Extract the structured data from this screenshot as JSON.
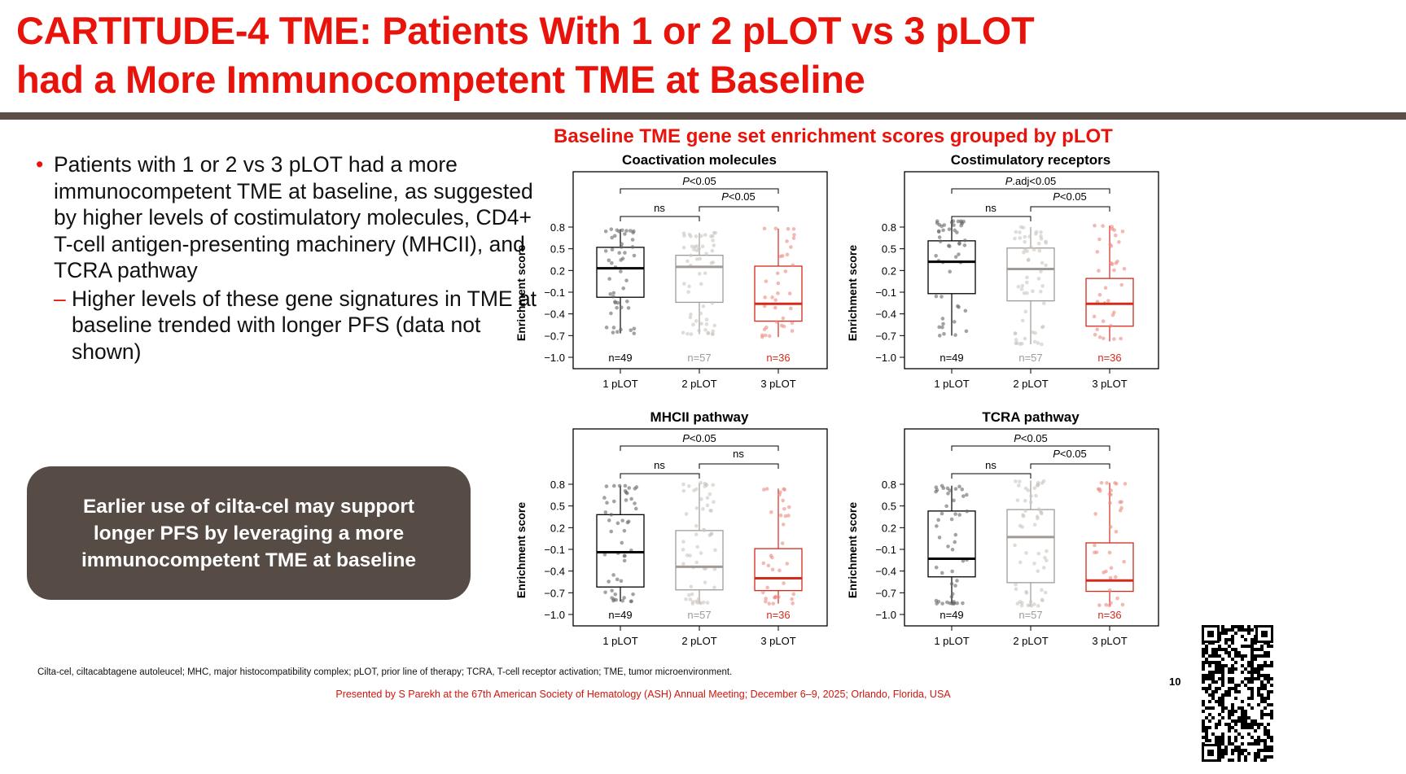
{
  "slide": {
    "title_line1": "CARTITUDE-4 TME: Patients With 1 or 2 pLOT vs 3 pLOT",
    "title_line2": "had a More Immunocompetent TME at Baseline",
    "bullet1": "Patients with 1 or 2 vs 3 pLOT had a more immunocompetent TME at baseline, as suggested by higher levels of costimulatory molecules, CD4+ T-cell antigen-presenting machinery (MHCII), and TCRA pathway",
    "bullet1_marker": "•",
    "bullet2": "Higher levels of these gene signatures in TME at baseline trended with longer PFS (data not shown)",
    "bullet2_marker": "–",
    "callout": "Earlier use of cilta-cel may support longer PFS by leveraging a more immunocompetent TME at baseline",
    "chart_heading": "Baseline TME gene set enrichment scores grouped by pLOT",
    "footnote": "Cilta-cel, ciltacabtagene autoleucel; MHC, major histocompatibility complex; pLOT, prior line of therapy; TCRA, T-cell receptor activation; TME, tumor microenvironment.",
    "presented_by": "Presented by S Parekh at the 67th American Society of Hematology (ASH) Annual Meeting; December 6–9, 2025; Orlando, Florida, USA",
    "page_number": "10",
    "colors": {
      "title": "#e8140c",
      "rule": "#5b4f47",
      "callout": "#574b45"
    }
  },
  "chart_data": [
    {
      "type": "box",
      "title": "Coactivation molecules",
      "ylabel": "Enrichment score",
      "yticks": [
        "0.8",
        "0.5",
        "0.2",
        "−0.1",
        "−0.4",
        "−0.7",
        "−1.0"
      ],
      "ylim": [
        -1.0,
        0.8
      ],
      "categories": [
        "1 pLOT",
        "2 pLOT",
        "3 pLOT"
      ],
      "n_labels": [
        "n=49",
        "n=57",
        "n=36"
      ],
      "colors": [
        "#000000",
        "#a09a96",
        "#d42a1c"
      ],
      "boxes": [
        {
          "whisker_low": -0.67,
          "q1": -0.17,
          "median": 0.23,
          "q3": 0.52,
          "whisker_high": 0.77
        },
        {
          "whisker_low": -0.68,
          "q1": -0.24,
          "median": 0.25,
          "q3": 0.41,
          "whisker_high": 0.72
        },
        {
          "whisker_low": -0.72,
          "q1": -0.5,
          "median": -0.26,
          "q3": 0.26,
          "whisker_high": 0.78
        }
      ],
      "comparisons": {
        "1v3": "<0.05",
        "2v3": "<0.05",
        "1v2": "ns"
      },
      "p_prefix_1v3": "P",
      "p_prefix_2v3": "P"
    },
    {
      "type": "box",
      "title": "Costimulatory receptors",
      "ylabel": "Enrichment score",
      "yticks": [
        "0.8",
        "0.5",
        "0.2",
        "−0.1",
        "−0.4",
        "−0.7",
        "−1.0"
      ],
      "ylim": [
        -1.0,
        0.8
      ],
      "categories": [
        "1 pLOT",
        "2 pLOT",
        "3 pLOT"
      ],
      "n_labels": [
        "n=49",
        "n=57",
        "n=36"
      ],
      "colors": [
        "#000000",
        "#a09a96",
        "#d42a1c"
      ],
      "boxes": [
        {
          "whisker_low": -0.7,
          "q1": -0.12,
          "median": 0.32,
          "q3": 0.61,
          "whisker_high": 0.89
        },
        {
          "whisker_low": -0.82,
          "q1": -0.22,
          "median": 0.22,
          "q3": 0.51,
          "whisker_high": 0.8
        },
        {
          "whisker_low": -0.78,
          "q1": -0.57,
          "median": -0.26,
          "q3": 0.09,
          "whisker_high": 0.82
        }
      ],
      "comparisons": {
        "1v3": ".adj<0.05",
        "2v3": "<0.05",
        "1v2": "ns"
      },
      "p_prefix_1v3": "P",
      "p_prefix_2v3": "P"
    },
    {
      "type": "box",
      "title": "MHCII pathway",
      "ylabel": "Enrichment score",
      "yticks": [
        "0.8",
        "0.5",
        "0.2",
        "−0.1",
        "−0.4",
        "−0.7",
        "−1.0"
      ],
      "ylim": [
        -1.0,
        0.8
      ],
      "categories": [
        "1 pLOT",
        "2 pLOT",
        "3 pLOT"
      ],
      "n_labels": [
        "n=49",
        "n=57",
        "n=36"
      ],
      "colors": [
        "#000000",
        "#a09a96",
        "#d42a1c"
      ],
      "boxes": [
        {
          "whisker_low": -0.82,
          "q1": -0.62,
          "median": -0.14,
          "q3": 0.38,
          "whisker_high": 0.78
        },
        {
          "whisker_low": -0.85,
          "q1": -0.66,
          "median": -0.34,
          "q3": 0.16,
          "whisker_high": 0.82
        },
        {
          "whisker_low": -0.85,
          "q1": -0.67,
          "median": -0.5,
          "q3": -0.09,
          "whisker_high": 0.74
        }
      ],
      "comparisons": {
        "1v3": "<0.05",
        "2v3": "ns",
        "1v2": "ns"
      },
      "p_prefix_1v3": "P",
      "p_prefix_2v3": ""
    },
    {
      "type": "box",
      "title": "TCRA pathway",
      "ylabel": "Enrichment score",
      "yticks": [
        "0.8",
        "0.5",
        "0.2",
        "−0.1",
        "−0.4",
        "−0.7",
        "−1.0"
      ],
      "ylim": [
        -1.0,
        0.8
      ],
      "categories": [
        "1 pLOT",
        "2 pLOT",
        "3 pLOT"
      ],
      "n_labels": [
        "n=49",
        "n=57",
        "n=36"
      ],
      "colors": [
        "#000000",
        "#a09a96",
        "#d42a1c"
      ],
      "boxes": [
        {
          "whisker_low": -0.85,
          "q1": -0.48,
          "median": -0.23,
          "q3": 0.43,
          "whisker_high": 0.78
        },
        {
          "whisker_low": -0.88,
          "q1": -0.56,
          "median": 0.07,
          "q3": 0.45,
          "whisker_high": 0.85
        },
        {
          "whisker_low": -0.88,
          "q1": -0.68,
          "median": -0.53,
          "q3": -0.01,
          "whisker_high": 0.82
        }
      ],
      "comparisons": {
        "1v3": "<0.05",
        "2v3": "<0.05",
        "1v2": "ns"
      },
      "p_prefix_1v3": "P",
      "p_prefix_2v3": "P"
    }
  ]
}
